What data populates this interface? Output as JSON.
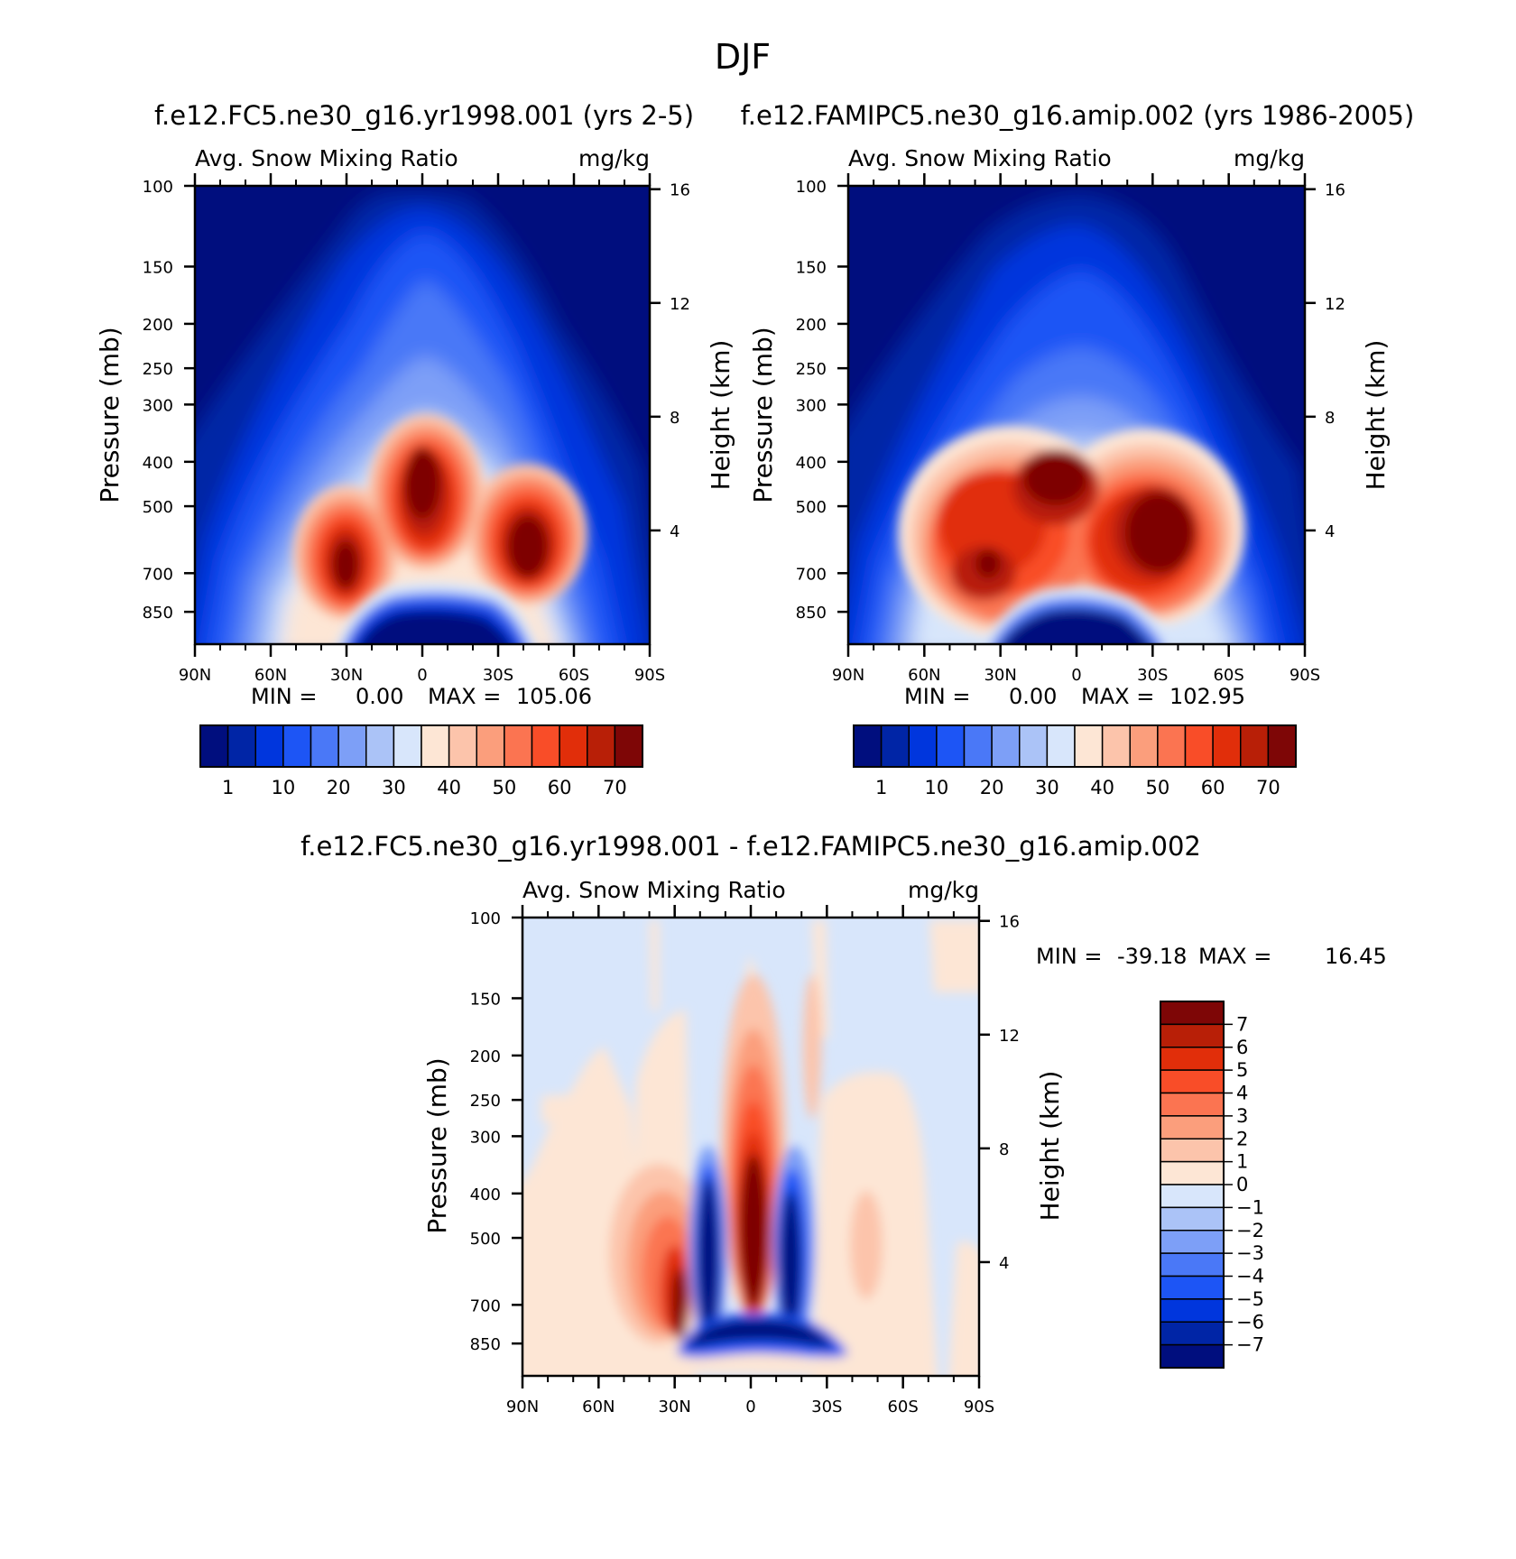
{
  "figure": {
    "title": "DJF"
  },
  "colors": {
    "abs_levels": [
      "#000e7e",
      "#0025a6",
      "#0036dd",
      "#1d55f5",
      "#4a78f7",
      "#7d9ff7",
      "#abc3f7",
      "#d8e6fb",
      "#fde6d5",
      "#fcc4ab",
      "#fb9e7c",
      "#fb7451",
      "#f94d28",
      "#e12e0a",
      "#b81f07",
      "#7e0606"
    ],
    "diff_levels": [
      "#000e7e",
      "#0025a6",
      "#0036dd",
      "#1d55f5",
      "#4a78f7",
      "#7d9ff7",
      "#abc3f7",
      "#d8e6fb",
      "#fde6d5",
      "#fcc4ab",
      "#fb9e7c",
      "#fb7451",
      "#f94d28",
      "#e12e0a",
      "#b81f07",
      "#7e0606"
    ]
  },
  "chart_data": [
    {
      "type": "heatmap",
      "id": "case_panel",
      "title": "f.e12.FC5.ne30_g16.yr1998.001 (yrs 2-5)",
      "left_string": "Avg. Snow Mixing Ratio",
      "right_string": "mg/kg",
      "ylabel": "Pressure (mb)",
      "y2label": "Height (km)",
      "xticks": [
        "90N",
        "60N",
        "30N",
        "0",
        "30S",
        "60S",
        "90S"
      ],
      "xvalues": [
        90,
        60,
        30,
        0,
        -30,
        -60,
        -90
      ],
      "yticks": [
        "100",
        "150",
        "200",
        "250",
        "300",
        "400",
        "500",
        "700",
        "850"
      ],
      "yvalues": [
        100,
        150,
        200,
        250,
        300,
        400,
        500,
        700,
        850
      ],
      "y2ticks": [
        "16",
        "12",
        "8",
        "4"
      ],
      "y2values": [
        16,
        12,
        8,
        4
      ],
      "ylim": [
        100,
        1000
      ],
      "xlim": [
        90,
        -90
      ],
      "min_label": "MIN =",
      "min_value": "0.00",
      "max_label": "MAX =",
      "max_value": "105.06",
      "colorbar_labels": [
        "1",
        "10",
        "20",
        "30",
        "40",
        "50",
        "60",
        "70"
      ],
      "features": [
        {
          "lat": 25,
          "p": 610,
          "value": 72
        },
        {
          "lat": -1,
          "p": 450,
          "value": 85
        },
        {
          "lat": -34,
          "p": 570,
          "value": 80
        }
      ]
    },
    {
      "type": "heatmap",
      "id": "control_panel",
      "title": "f.e12.FAMIPC5.ne30_g16.amip.002 (yrs 1986-2005)",
      "left_string": "Avg. Snow Mixing Ratio",
      "right_string": "mg/kg",
      "ylabel": "Pressure (mb)",
      "y2label": "Height (km)",
      "xticks": [
        "90N",
        "60N",
        "30N",
        "0",
        "30S",
        "60S",
        "90S"
      ],
      "xvalues": [
        90,
        60,
        30,
        0,
        -30,
        -60,
        -90
      ],
      "yticks": [
        "100",
        "150",
        "200",
        "250",
        "300",
        "400",
        "500",
        "700",
        "850"
      ],
      "yvalues": [
        100,
        150,
        200,
        250,
        300,
        400,
        500,
        700,
        850
      ],
      "y2ticks": [
        "16",
        "12",
        "8",
        "4"
      ],
      "y2values": [
        16,
        12,
        8,
        4
      ],
      "ylim": [
        100,
        1000
      ],
      "xlim": [
        90,
        -90
      ],
      "min_label": "MIN =",
      "min_value": "0.00",
      "max_label": "MAX =",
      "max_value": "102.95",
      "colorbar_labels": [
        "1",
        "10",
        "20",
        "30",
        "40",
        "50",
        "60",
        "70"
      ],
      "features": [
        {
          "lat": 30,
          "p": 620,
          "value": 68
        },
        {
          "lat": 0,
          "p": 450,
          "value": 80
        },
        {
          "lat": -37,
          "p": 560,
          "value": 82
        }
      ]
    },
    {
      "type": "heatmap",
      "id": "difference_panel",
      "title": "f.e12.FC5.ne30_g16.yr1998.001 - f.e12.FAMIPC5.ne30_g16.amip.002",
      "left_string": "Avg. Snow Mixing Ratio",
      "right_string": "mg/kg",
      "ylabel": "Pressure (mb)",
      "y2label": "Height (km)",
      "xticks": [
        "90N",
        "60N",
        "30N",
        "0",
        "30S",
        "60S",
        "90S"
      ],
      "xvalues": [
        90,
        60,
        30,
        0,
        -30,
        -60,
        -90
      ],
      "yticks": [
        "100",
        "150",
        "200",
        "250",
        "300",
        "400",
        "500",
        "700",
        "850"
      ],
      "yvalues": [
        100,
        150,
        200,
        250,
        300,
        400,
        500,
        700,
        850
      ],
      "y2ticks": [
        "16",
        "12",
        "8",
        "4"
      ],
      "y2values": [
        16,
        12,
        8,
        4
      ],
      "ylim": [
        100,
        1000
      ],
      "xlim": [
        90,
        -90
      ],
      "min_label": "MIN =",
      "min_value": "-39.18",
      "max_label": "MAX =",
      "max_value": "16.45",
      "colorbar_labels": [
        "7",
        "6",
        "5",
        "4",
        "3",
        "2",
        "1",
        "0",
        "-1",
        "-2",
        "-3",
        "-4",
        "-5",
        "-6",
        "-7"
      ],
      "features": [
        {
          "lat": 0,
          "p": 380,
          "value": 12
        },
        {
          "lat": 28,
          "p": 560,
          "value": 5
        },
        {
          "lat": 18,
          "p": 650,
          "value": -20
        },
        {
          "lat": -18,
          "p": 660,
          "value": -15
        }
      ]
    }
  ]
}
